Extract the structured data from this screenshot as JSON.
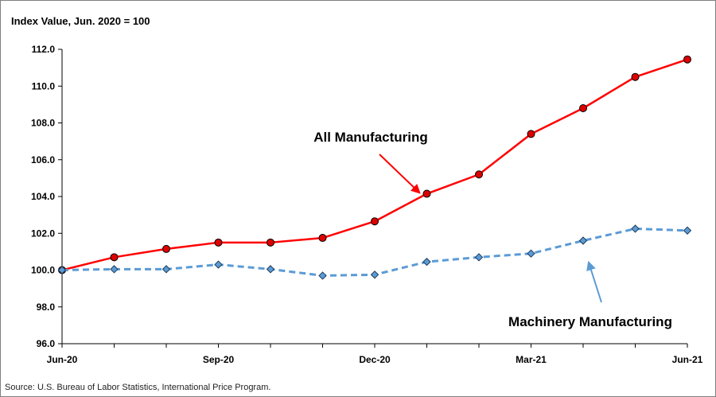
{
  "chart_data": {
    "type": "line",
    "title": "",
    "ylabel": "Index Value, Jun. 2020 = 100",
    "xlabel": "",
    "ylim": [
      96.0,
      112.0
    ],
    "yticks": [
      "96.0",
      "98.0",
      "100.0",
      "102.0",
      "104.0",
      "106.0",
      "108.0",
      "110.0",
      "112.0"
    ],
    "x_ticks": [
      "Jun-20",
      "Sep-20",
      "Dec-20",
      "Mar-21",
      "Jun-21"
    ],
    "x": [
      "Jun-20",
      "Jul-20",
      "Aug-20",
      "Sep-20",
      "Oct-20",
      "Nov-20",
      "Dec-20",
      "Jan-21",
      "Feb-21",
      "Mar-21",
      "Apr-21",
      "May-21",
      "Jun-21"
    ],
    "series": [
      {
        "name": "All Manufacturing",
        "color": "#ff0000",
        "marker": "circle",
        "line_style": "solid",
        "values": [
          100.0,
          100.7,
          101.15,
          101.5,
          101.5,
          101.75,
          102.65,
          104.15,
          105.2,
          107.4,
          108.8,
          110.5,
          111.45
        ]
      },
      {
        "name": "Machinery Manufacturing",
        "color": "#5b9bd5",
        "marker": "diamond",
        "line_style": "dashed",
        "values": [
          100.0,
          100.05,
          100.05,
          100.3,
          100.05,
          99.7,
          99.75,
          100.45,
          100.7,
          100.9,
          101.6,
          102.25,
          102.15
        ]
      }
    ],
    "annotations": {
      "all_manufacturing": "All Manufacturing",
      "machinery_manufacturing": "Machinery Manufacturing"
    },
    "grid": false
  },
  "footer": {
    "source": "Source: U.S. Bureau of Labor Statistics, International Price Program."
  }
}
